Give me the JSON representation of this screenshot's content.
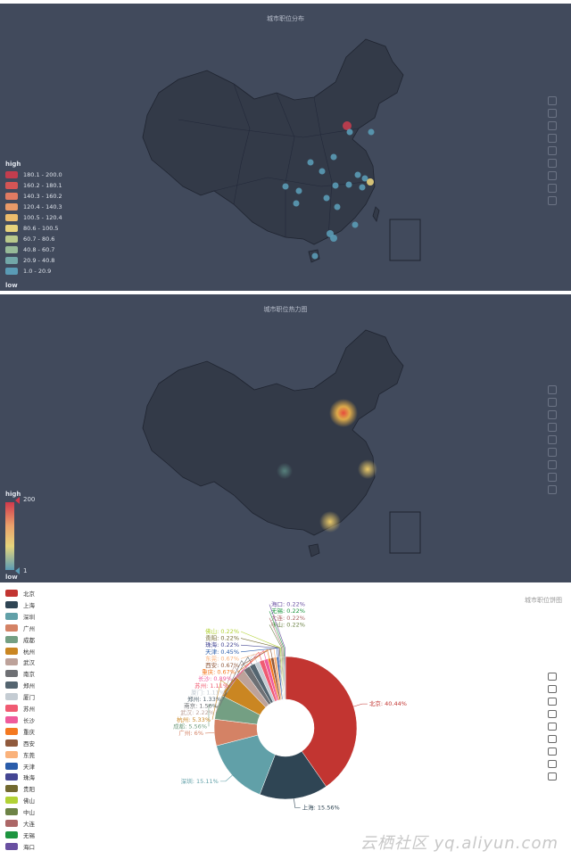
{
  "panel1": {
    "title": "城市职位分布",
    "legend_high": "high",
    "legend_low": "low",
    "pieces": [
      {
        "label": "180.1 - 200.0",
        "color": "#c33d4e"
      },
      {
        "label": "160.2 - 180.1",
        "color": "#d45555"
      },
      {
        "label": "140.3 - 160.2",
        "color": "#e07b62"
      },
      {
        "label": "120.4 - 140.3",
        "color": "#e99a68"
      },
      {
        "label": "100.5 - 120.4",
        "color": "#ecbc6c"
      },
      {
        "label": "80.6 - 100.5",
        "color": "#e7d27c"
      },
      {
        "label": "60.7 - 80.6",
        "color": "#b9c98c"
      },
      {
        "label": "40.8 - 60.7",
        "color": "#97ba98"
      },
      {
        "label": "20.9 - 40.8",
        "color": "#72a7a8"
      },
      {
        "label": "1.0 - 20.9",
        "color": "#5a9bb5"
      }
    ]
  },
  "panel2": {
    "title": "城市职位热力图",
    "legend_high": "high",
    "legend_low": "low",
    "max_label": "200",
    "min_label": "1"
  },
  "panel3": {
    "title": "城市职位饼图",
    "watermark": "云栖社区 yq.aliyun.com"
  },
  "chart_data": [
    {
      "type": "scatter",
      "title": "城市职位分布",
      "note": "geo scatter on China map; Beijing highlighted in top bin",
      "visual_map_bins": [
        "180.1 - 200.0",
        "160.2 - 180.1",
        "140.3 - 160.2",
        "120.4 - 140.3",
        "100.5 - 120.4",
        "80.6 - 100.5",
        "60.7 - 80.6",
        "40.8 - 60.7",
        "20.9 - 40.8",
        "1.0 - 20.9"
      ]
    },
    {
      "type": "heatmap",
      "title": "城市职位热力图",
      "range": [
        1,
        200
      ]
    },
    {
      "type": "pie",
      "title": "城市职位饼图",
      "categories": [
        "北京",
        "上海",
        "深圳",
        "广州",
        "成都",
        "杭州",
        "武汉",
        "南京",
        "郑州",
        "厦门",
        "苏州",
        "长沙",
        "重庆",
        "西安",
        "东莞",
        "天津",
        "珠海",
        "贵阳",
        "佛山",
        "中山",
        "大连",
        "无锡",
        "海口"
      ],
      "values": [
        40.44,
        15.56,
        15.11,
        6,
        5.56,
        5.33,
        2.22,
        1.56,
        1.33,
        1.11,
        1.11,
        0.89,
        0.67,
        0.67,
        0.67,
        0.45,
        0.22,
        0.22,
        0.22,
        0.22,
        0.22,
        0.22,
        0.22
      ],
      "labels": [
        "北京: 40.44%",
        "上海: 15.56%",
        "深圳: 15.11%",
        "广州: 6%",
        "成都: 5.56%",
        "杭州: 5.33%",
        "武汉: 2.22%",
        "南京: 1.56%",
        "郑州: 1.33%",
        "厦门: 1.11%",
        "苏州: 1.11%",
        "长沙: 0.89%",
        "重庆: 0.67%",
        "西安: 0.67%",
        "东莞: 0.67%",
        "天津: 0.45%",
        "珠海: 0.22%",
        "贵阳: 0.22%",
        "佛山: 0.22%",
        "中山: 0.22%",
        "大连: 0.22%",
        "无锡: 0.22%",
        "海口: 0.22%"
      ],
      "colors": [
        "#c23531",
        "#2f4554",
        "#61a0a8",
        "#d48265",
        "#749f83",
        "#ca8622",
        "#bda29a",
        "#6e7074",
        "#546570",
        "#c4ccd3",
        "#f05b72",
        "#ef5b9c",
        "#f47920",
        "#905a3d",
        "#fab27b",
        "#2a5caa",
        "#444693",
        "#726930",
        "#b2d235",
        "#6d8346",
        "#ac6767",
        "#1d953f",
        "#6950a1"
      ]
    }
  ]
}
